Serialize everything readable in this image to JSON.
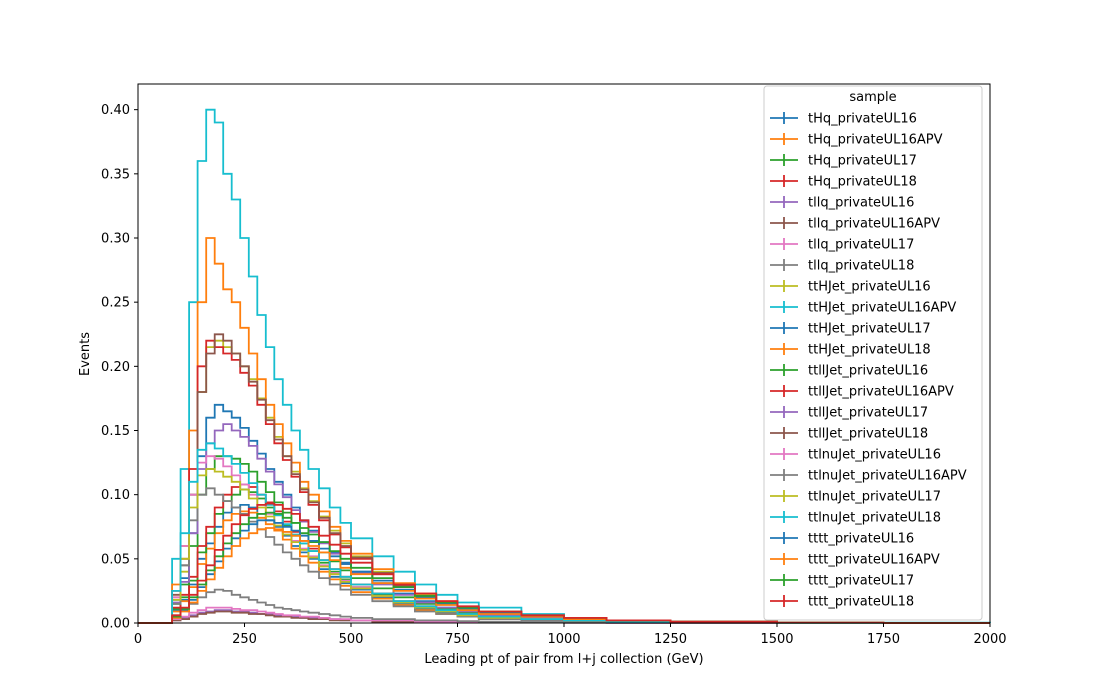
{
  "chart_data": {
    "type": "line",
    "drawstyle": "step-histogram",
    "title": "",
    "xlabel": "Leading pt of pair from l+j collection (GeV)",
    "ylabel": "Events",
    "xlim": [
      0,
      2000
    ],
    "ylim": [
      0,
      0.42
    ],
    "x_ticks": [
      "0",
      "250",
      "500",
      "750",
      "1000",
      "1250",
      "1500",
      "1750",
      "2000"
    ],
    "y_ticks": [
      "0.00",
      "0.05",
      "0.10",
      "0.15",
      "0.20",
      "0.25",
      "0.30",
      "0.35",
      "0.40"
    ],
    "grid": false,
    "legend": {
      "title": "sample",
      "placement": "top-right"
    },
    "x": [
      0,
      50,
      80,
      100,
      120,
      140,
      160,
      180,
      200,
      220,
      240,
      260,
      280,
      300,
      320,
      340,
      360,
      380,
      400,
      425,
      450,
      475,
      500,
      550,
      600,
      650,
      700,
      750,
      800,
      900,
      1000,
      1100,
      1250,
      1500,
      1750,
      2000
    ],
    "series": [
      {
        "name": "tHq_privateUL16",
        "color": "#1f77b4",
        "values": [
          0,
          0,
          0.01,
          0.018,
          0.03,
          0.05,
          0.062,
          0.075,
          0.086,
          0.09,
          0.092,
          0.09,
          0.085,
          0.08,
          0.075,
          0.068,
          0.06,
          0.055,
          0.05,
          0.042,
          0.036,
          0.031,
          0.026,
          0.02,
          0.015,
          0.011,
          0.008,
          0.006,
          0.004,
          0.003,
          0.002,
          0.001,
          0.0005,
          0.0002,
          0,
          0
        ]
      },
      {
        "name": "tHq_privateUL16APV",
        "color": "#ff7f0e",
        "values": [
          0,
          0,
          0.009,
          0.017,
          0.028,
          0.046,
          0.058,
          0.07,
          0.08,
          0.085,
          0.087,
          0.086,
          0.082,
          0.077,
          0.072,
          0.065,
          0.058,
          0.052,
          0.047,
          0.04,
          0.034,
          0.029,
          0.024,
          0.019,
          0.014,
          0.01,
          0.007,
          0.005,
          0.004,
          0.003,
          0.002,
          0.001,
          0.0005,
          0.0002,
          0,
          0
        ]
      },
      {
        "name": "tHq_privateUL17",
        "color": "#2ca02c",
        "values": [
          0,
          0,
          0.011,
          0.02,
          0.033,
          0.055,
          0.07,
          0.085,
          0.095,
          0.1,
          0.104,
          0.102,
          0.097,
          0.09,
          0.084,
          0.076,
          0.068,
          0.062,
          0.056,
          0.047,
          0.04,
          0.034,
          0.028,
          0.022,
          0.016,
          0.012,
          0.009,
          0.006,
          0.005,
          0.003,
          0.002,
          0.001,
          0.0005,
          0.0002,
          0,
          0
        ]
      },
      {
        "name": "tHq_privateUL18",
        "color": "#d62728",
        "values": [
          0,
          0,
          0.012,
          0.022,
          0.036,
          0.06,
          0.075,
          0.09,
          0.1,
          0.106,
          0.108,
          0.106,
          0.1,
          0.094,
          0.087,
          0.079,
          0.071,
          0.064,
          0.058,
          0.049,
          0.042,
          0.036,
          0.03,
          0.023,
          0.017,
          0.013,
          0.009,
          0.007,
          0.005,
          0.003,
          0.002,
          0.001,
          0.0005,
          0.0002,
          0,
          0
        ]
      },
      {
        "name": "tllq_privateUL16",
        "color": "#9467bd",
        "values": [
          0,
          0,
          0.002,
          0.004,
          0.006,
          0.008,
          0.009,
          0.01,
          0.01,
          0.009,
          0.009,
          0.008,
          0.007,
          0.007,
          0.006,
          0.005,
          0.005,
          0.004,
          0.004,
          0.003,
          0.003,
          0.002,
          0.002,
          0.002,
          0.001,
          0.001,
          0.001,
          0.0005,
          0.0005,
          0.0003,
          0.0002,
          0.0001,
          0,
          0,
          0,
          0
        ]
      },
      {
        "name": "tllq_privateUL16APV",
        "color": "#8c564b",
        "values": [
          0,
          0,
          0.002,
          0.003,
          0.005,
          0.007,
          0.008,
          0.009,
          0.009,
          0.008,
          0.008,
          0.007,
          0.007,
          0.006,
          0.005,
          0.005,
          0.004,
          0.004,
          0.003,
          0.003,
          0.002,
          0.002,
          0.002,
          0.001,
          0.001,
          0.001,
          0.0005,
          0.0005,
          0.0004,
          0.0003,
          0.0002,
          0.0001,
          0,
          0,
          0,
          0
        ]
      },
      {
        "name": "tllq_privateUL17",
        "color": "#e377c2",
        "values": [
          0,
          0,
          0.003,
          0.005,
          0.008,
          0.01,
          0.012,
          0.012,
          0.012,
          0.011,
          0.01,
          0.01,
          0.009,
          0.008,
          0.007,
          0.006,
          0.006,
          0.005,
          0.005,
          0.004,
          0.003,
          0.003,
          0.002,
          0.002,
          0.002,
          0.001,
          0.001,
          0.0008,
          0.0006,
          0.0004,
          0.0003,
          0.0002,
          0.0001,
          0,
          0,
          0
        ]
      },
      {
        "name": "tllq_privateUL18",
        "color": "#7f7f7f",
        "values": [
          0,
          0,
          0.006,
          0.01,
          0.015,
          0.02,
          0.024,
          0.026,
          0.025,
          0.022,
          0.02,
          0.018,
          0.016,
          0.014,
          0.012,
          0.011,
          0.01,
          0.009,
          0.008,
          0.007,
          0.006,
          0.005,
          0.004,
          0.003,
          0.003,
          0.002,
          0.002,
          0.0015,
          0.001,
          0.0008,
          0.0005,
          0.0003,
          0.0001,
          0,
          0,
          0
        ]
      },
      {
        "name": "ttHJet_privateUL16",
        "color": "#bcbd22",
        "values": [
          0,
          0,
          0.02,
          0.04,
          0.1,
          0.18,
          0.215,
          0.22,
          0.215,
          0.21,
          0.2,
          0.19,
          0.175,
          0.16,
          0.145,
          0.13,
          0.118,
          0.105,
          0.095,
          0.083,
          0.072,
          0.062,
          0.052,
          0.04,
          0.03,
          0.022,
          0.016,
          0.011,
          0.008,
          0.005,
          0.003,
          0.002,
          0.001,
          0.0003,
          0,
          0
        ]
      },
      {
        "name": "ttHJet_privateUL16APV",
        "color": "#17becf",
        "values": [
          0,
          0,
          0.05,
          0.12,
          0.25,
          0.36,
          0.4,
          0.39,
          0.35,
          0.33,
          0.3,
          0.27,
          0.24,
          0.215,
          0.19,
          0.17,
          0.15,
          0.135,
          0.12,
          0.105,
          0.09,
          0.078,
          0.066,
          0.052,
          0.04,
          0.03,
          0.022,
          0.016,
          0.012,
          0.007,
          0.004,
          0.002,
          0.001,
          0.0005,
          0.0002,
          0
        ]
      },
      {
        "name": "ttHJet_privateUL17",
        "color": "#1f77b4",
        "values": [
          0,
          0,
          0.018,
          0.035,
          0.07,
          0.13,
          0.16,
          0.17,
          0.165,
          0.16,
          0.152,
          0.142,
          0.132,
          0.12,
          0.11,
          0.1,
          0.09,
          0.08,
          0.072,
          0.063,
          0.055,
          0.047,
          0.04,
          0.031,
          0.023,
          0.017,
          0.012,
          0.009,
          0.006,
          0.004,
          0.002,
          0.001,
          0.0005,
          0.0002,
          0,
          0
        ]
      },
      {
        "name": "ttHJet_privateUL18",
        "color": "#ff7f0e",
        "values": [
          0,
          0,
          0.03,
          0.06,
          0.15,
          0.25,
          0.3,
          0.28,
          0.26,
          0.25,
          0.23,
          0.21,
          0.19,
          0.17,
          0.155,
          0.14,
          0.125,
          0.11,
          0.1,
          0.087,
          0.075,
          0.064,
          0.054,
          0.042,
          0.031,
          0.023,
          0.017,
          0.012,
          0.008,
          0.005,
          0.003,
          0.002,
          0.001,
          0.0003,
          0,
          0
        ]
      },
      {
        "name": "ttllJet_privateUL16",
        "color": "#2ca02c",
        "values": [
          0,
          0,
          0.015,
          0.03,
          0.06,
          0.1,
          0.12,
          0.13,
          0.13,
          0.128,
          0.124,
          0.118,
          0.11,
          0.102,
          0.094,
          0.086,
          0.078,
          0.07,
          0.063,
          0.055,
          0.048,
          0.041,
          0.035,
          0.027,
          0.02,
          0.015,
          0.011,
          0.008,
          0.006,
          0.004,
          0.002,
          0.001,
          0.0005,
          0.0002,
          0,
          0
        ]
      },
      {
        "name": "ttllJet_privateUL16APV",
        "color": "#d62728",
        "values": [
          0,
          0,
          0.025,
          0.05,
          0.12,
          0.2,
          0.22,
          0.215,
          0.21,
          0.205,
          0.195,
          0.185,
          0.17,
          0.155,
          0.14,
          0.127,
          0.114,
          0.102,
          0.092,
          0.08,
          0.069,
          0.059,
          0.05,
          0.038,
          0.028,
          0.021,
          0.015,
          0.011,
          0.008,
          0.005,
          0.003,
          0.002,
          0.001,
          0.0003,
          0,
          0
        ]
      },
      {
        "name": "ttllJet_privateUL17",
        "color": "#9467bd",
        "values": [
          0,
          0,
          0.016,
          0.032,
          0.07,
          0.12,
          0.14,
          0.15,
          0.155,
          0.15,
          0.145,
          0.138,
          0.128,
          0.118,
          0.108,
          0.098,
          0.088,
          0.079,
          0.071,
          0.062,
          0.054,
          0.046,
          0.039,
          0.03,
          0.022,
          0.016,
          0.012,
          0.009,
          0.006,
          0.004,
          0.002,
          0.001,
          0.0005,
          0.0002,
          0,
          0
        ]
      },
      {
        "name": "ttllJet_privateUL18",
        "color": "#8c564b",
        "values": [
          0,
          0,
          0.022,
          0.045,
          0.1,
          0.18,
          0.21,
          0.225,
          0.22,
          0.21,
          0.2,
          0.188,
          0.174,
          0.158,
          0.143,
          0.13,
          0.116,
          0.104,
          0.094,
          0.082,
          0.07,
          0.06,
          0.051,
          0.039,
          0.029,
          0.021,
          0.015,
          0.011,
          0.008,
          0.005,
          0.003,
          0.002,
          0.001,
          0.0003,
          0,
          0
        ]
      },
      {
        "name": "ttlnuJet_privateUL16",
        "color": "#e377c2",
        "values": [
          0,
          0,
          0.02,
          0.06,
          0.1,
          0.125,
          0.13,
          0.128,
          0.122,
          0.115,
          0.108,
          0.1,
          0.092,
          0.085,
          0.078,
          0.071,
          0.064,
          0.058,
          0.052,
          0.045,
          0.039,
          0.033,
          0.028,
          0.021,
          0.016,
          0.012,
          0.009,
          0.006,
          0.004,
          0.003,
          0.002,
          0.001,
          0.0005,
          0.0002,
          0,
          0
        ]
      },
      {
        "name": "ttlnuJet_privateUL16APV",
        "color": "#7f7f7f",
        "values": [
          0,
          0,
          0.015,
          0.045,
          0.08,
          0.1,
          0.105,
          0.1,
          0.095,
          0.09,
          0.085,
          0.079,
          0.073,
          0.067,
          0.061,
          0.055,
          0.05,
          0.045,
          0.04,
          0.035,
          0.03,
          0.026,
          0.022,
          0.017,
          0.013,
          0.009,
          0.007,
          0.005,
          0.003,
          0.002,
          0.001,
          0.0005,
          0.0002,
          0,
          0,
          0
        ]
      },
      {
        "name": "ttlnuJet_privateUL17",
        "color": "#bcbd22",
        "values": [
          0,
          0,
          0.018,
          0.05,
          0.09,
          0.115,
          0.12,
          0.118,
          0.114,
          0.11,
          0.104,
          0.097,
          0.09,
          0.083,
          0.076,
          0.069,
          0.063,
          0.057,
          0.051,
          0.044,
          0.038,
          0.032,
          0.027,
          0.021,
          0.016,
          0.012,
          0.009,
          0.006,
          0.004,
          0.003,
          0.002,
          0.001,
          0.0005,
          0.0002,
          0,
          0
        ]
      },
      {
        "name": "ttlnuJet_privateUL18",
        "color": "#17becf",
        "values": [
          0,
          0,
          0.025,
          0.07,
          0.11,
          0.135,
          0.14,
          0.136,
          0.13,
          0.124,
          0.117,
          0.109,
          0.1,
          0.092,
          0.084,
          0.077,
          0.069,
          0.062,
          0.056,
          0.049,
          0.042,
          0.036,
          0.03,
          0.023,
          0.017,
          0.013,
          0.01,
          0.007,
          0.005,
          0.003,
          0.002,
          0.001,
          0.0005,
          0.0002,
          0,
          0
        ]
      },
      {
        "name": "tttt_privateUL16",
        "color": "#1f77b4",
        "values": [
          0,
          0,
          0.005,
          0.01,
          0.018,
          0.028,
          0.038,
          0.048,
          0.058,
          0.066,
          0.072,
          0.077,
          0.08,
          0.08,
          0.078,
          0.075,
          0.072,
          0.068,
          0.064,
          0.058,
          0.052,
          0.046,
          0.04,
          0.033,
          0.026,
          0.02,
          0.015,
          0.011,
          0.008,
          0.005,
          0.003,
          0.002,
          0.001,
          0.0003,
          0,
          0
        ]
      },
      {
        "name": "tttt_privateUL16APV",
        "color": "#ff7f0e",
        "values": [
          0,
          0,
          0.004,
          0.009,
          0.016,
          0.025,
          0.034,
          0.043,
          0.052,
          0.06,
          0.066,
          0.07,
          0.073,
          0.074,
          0.073,
          0.071,
          0.068,
          0.064,
          0.06,
          0.055,
          0.049,
          0.043,
          0.038,
          0.031,
          0.025,
          0.019,
          0.014,
          0.01,
          0.007,
          0.005,
          0.003,
          0.002,
          0.001,
          0.0003,
          0,
          0
        ]
      },
      {
        "name": "tttt_privateUL17",
        "color": "#2ca02c",
        "values": [
          0,
          0,
          0.005,
          0.011,
          0.02,
          0.03,
          0.041,
          0.052,
          0.062,
          0.07,
          0.077,
          0.082,
          0.085,
          0.086,
          0.085,
          0.082,
          0.078,
          0.074,
          0.069,
          0.063,
          0.056,
          0.05,
          0.043,
          0.035,
          0.028,
          0.021,
          0.016,
          0.012,
          0.009,
          0.006,
          0.004,
          0.002,
          0.001,
          0.0003,
          0,
          0
        ]
      },
      {
        "name": "tttt_privateUL18",
        "color": "#d62728",
        "values": [
          0,
          0,
          0.006,
          0.012,
          0.022,
          0.033,
          0.045,
          0.057,
          0.068,
          0.077,
          0.084,
          0.089,
          0.092,
          0.093,
          0.092,
          0.089,
          0.085,
          0.08,
          0.075,
          0.068,
          0.061,
          0.054,
          0.047,
          0.038,
          0.03,
          0.023,
          0.017,
          0.013,
          0.009,
          0.006,
          0.004,
          0.002,
          0.001,
          0.0003,
          0,
          0
        ]
      }
    ]
  }
}
